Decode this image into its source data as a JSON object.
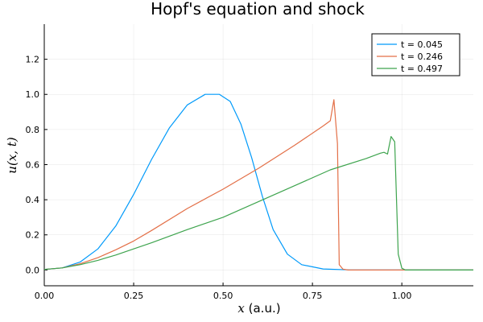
{
  "chart_data": {
    "type": "line",
    "title": "Hopf's equation and shock",
    "xlabel_var": "x",
    "xlabel_unit": " (a.u.)",
    "ylabel": "u(x, t)",
    "xlim": [
      0,
      1.2
    ],
    "ylim": [
      -0.09,
      1.4
    ],
    "xticks": [
      0.0,
      0.25,
      0.5,
      0.75,
      1.0
    ],
    "xtick_labels": [
      "0.00",
      "0.25",
      "0.50",
      "0.75",
      "1.00"
    ],
    "yticks": [
      0.0,
      0.2,
      0.4,
      0.6,
      0.8,
      1.0,
      1.2
    ],
    "ytick_labels": [
      "0.0",
      "0.2",
      "0.4",
      "0.6",
      "0.8",
      "1.0",
      "1.2"
    ],
    "grid": true,
    "legend_position": "top-right",
    "series": [
      {
        "name": "t = 0.045",
        "color": "#009AFA",
        "points": [
          [
            0,
            0.003
          ],
          [
            0.05,
            0.012
          ],
          [
            0.1,
            0.045
          ],
          [
            0.15,
            0.12
          ],
          [
            0.2,
            0.25
          ],
          [
            0.25,
            0.43
          ],
          [
            0.3,
            0.63
          ],
          [
            0.35,
            0.81
          ],
          [
            0.4,
            0.94
          ],
          [
            0.45,
            1.0
          ],
          [
            0.49,
            1.0
          ],
          [
            0.52,
            0.96
          ],
          [
            0.55,
            0.83
          ],
          [
            0.58,
            0.64
          ],
          [
            0.61,
            0.42
          ],
          [
            0.64,
            0.23
          ],
          [
            0.68,
            0.09
          ],
          [
            0.72,
            0.03
          ],
          [
            0.78,
            0.006
          ],
          [
            0.85,
            0.001
          ],
          [
            1.2,
            0.0
          ]
        ]
      },
      {
        "name": "t = 0.246",
        "color": "#E36F47",
        "points": [
          [
            0,
            0.003
          ],
          [
            0.05,
            0.012
          ],
          [
            0.1,
            0.035
          ],
          [
            0.15,
            0.07
          ],
          [
            0.2,
            0.115
          ],
          [
            0.25,
            0.165
          ],
          [
            0.3,
            0.225
          ],
          [
            0.4,
            0.35
          ],
          [
            0.5,
            0.46
          ],
          [
            0.6,
            0.58
          ],
          [
            0.7,
            0.71
          ],
          [
            0.78,
            0.82
          ],
          [
            0.8,
            0.85
          ],
          [
            0.81,
            0.97
          ],
          [
            0.82,
            0.72
          ],
          [
            0.825,
            0.03
          ],
          [
            0.835,
            0.005
          ],
          [
            0.85,
            0.0
          ],
          [
            1.2,
            0.0
          ]
        ]
      },
      {
        "name": "t = 0.497",
        "color": "#3EA44E",
        "points": [
          [
            0,
            0.003
          ],
          [
            0.05,
            0.012
          ],
          [
            0.1,
            0.03
          ],
          [
            0.15,
            0.055
          ],
          [
            0.2,
            0.085
          ],
          [
            0.25,
            0.12
          ],
          [
            0.3,
            0.155
          ],
          [
            0.4,
            0.23
          ],
          [
            0.5,
            0.3
          ],
          [
            0.6,
            0.39
          ],
          [
            0.7,
            0.48
          ],
          [
            0.8,
            0.57
          ],
          [
            0.9,
            0.635
          ],
          [
            0.94,
            0.665
          ],
          [
            0.95,
            0.67
          ],
          [
            0.96,
            0.66
          ],
          [
            0.97,
            0.76
          ],
          [
            0.98,
            0.73
          ],
          [
            0.99,
            0.09
          ],
          [
            1.0,
            0.01
          ],
          [
            1.01,
            0.0
          ],
          [
            1.2,
            0.0
          ]
        ]
      }
    ]
  }
}
